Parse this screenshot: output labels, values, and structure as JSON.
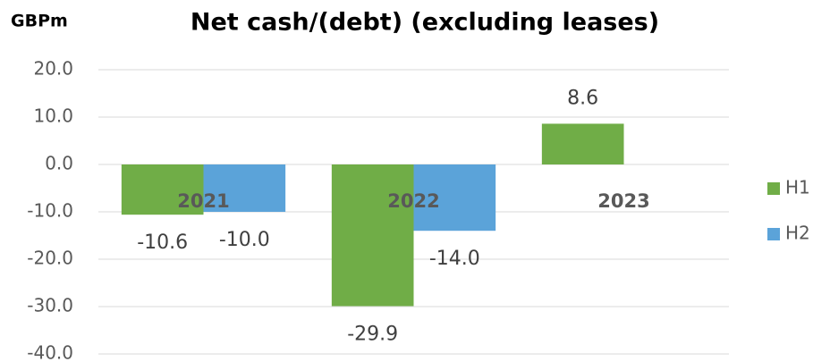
{
  "chart_data": {
    "type": "bar",
    "title": "Net cash/(debt) (excluding leases)",
    "unit_label": "GBPm",
    "categories": [
      "2021",
      "2022",
      "2023"
    ],
    "series": [
      {
        "name": "H1",
        "color": "#70ad47",
        "values": [
          -10.6,
          -29.9,
          8.6
        ],
        "value_labels": [
          "-10.6",
          "-29.9",
          "8.6"
        ]
      },
      {
        "name": "H2",
        "color": "#5ba3d9",
        "values": [
          -10.0,
          -14.0,
          null
        ],
        "value_labels": [
          "-10.0",
          "-14.0",
          null
        ]
      }
    ],
    "ylim": [
      -40,
      20
    ],
    "yticks": [
      {
        "value": -40,
        "label": "-40.0"
      },
      {
        "value": -30,
        "label": "-30.0"
      },
      {
        "value": -20,
        "label": "-20.0"
      },
      {
        "value": -10,
        "label": "-10.0"
      },
      {
        "value": 0,
        "label": "0.0"
      },
      {
        "value": 10,
        "label": "10.0"
      },
      {
        "value": 20,
        "label": "20.0"
      }
    ],
    "grid": true,
    "legend": "right"
  }
}
